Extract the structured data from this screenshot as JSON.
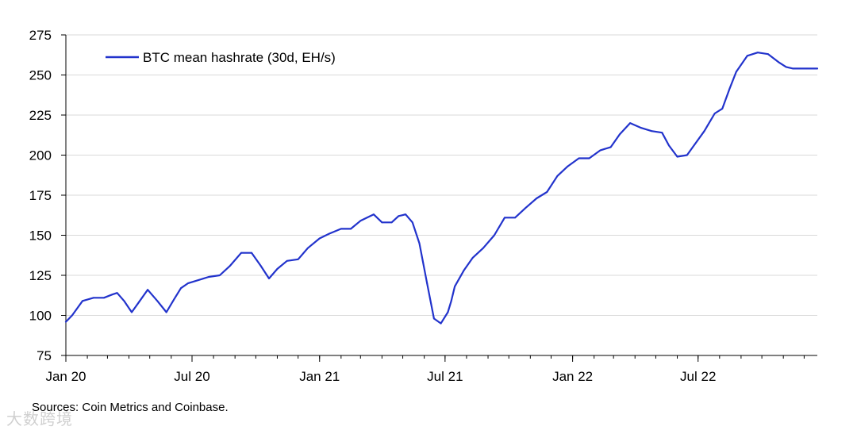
{
  "chart_data": {
    "type": "line",
    "title": "",
    "xlabel": "",
    "ylabel": "",
    "ylim": [
      75,
      275
    ],
    "yticks": [
      75,
      100,
      125,
      150,
      175,
      200,
      225,
      250,
      275
    ],
    "xlim": [
      "2020-01-01",
      "2022-12-20"
    ],
    "xticks": [
      {
        "date": "2020-01-01",
        "label": "Jan 20"
      },
      {
        "date": "2020-07-01",
        "label": "Jul 20"
      },
      {
        "date": "2021-01-01",
        "label": "Jan 21"
      },
      {
        "date": "2021-07-01",
        "label": "Jul 21"
      },
      {
        "date": "2022-01-01",
        "label": "Jan 22"
      },
      {
        "date": "2022-07-01",
        "label": "Jul 22"
      }
    ],
    "grid": "horizontal",
    "legend_position": "top-left",
    "series": [
      {
        "name": "BTC mean hashrate (30d, EH/s)",
        "color": "#2233cc",
        "x": [
          "2020-01-01",
          "2020-01-10",
          "2020-01-25",
          "2020-02-10",
          "2020-02-25",
          "2020-03-08",
          "2020-03-15",
          "2020-03-25",
          "2020-04-05",
          "2020-04-15",
          "2020-04-28",
          "2020-05-12",
          "2020-05-25",
          "2020-06-05",
          "2020-06-15",
          "2020-06-25",
          "2020-07-10",
          "2020-07-25",
          "2020-08-10",
          "2020-08-25",
          "2020-09-10",
          "2020-09-25",
          "2020-10-08",
          "2020-10-20",
          "2020-11-01",
          "2020-11-15",
          "2020-12-01",
          "2020-12-15",
          "2021-01-01",
          "2021-01-15",
          "2021-02-01",
          "2021-02-15",
          "2021-03-01",
          "2021-03-20",
          "2021-04-01",
          "2021-04-15",
          "2021-04-25",
          "2021-05-05",
          "2021-05-15",
          "2021-05-25",
          "2021-06-05",
          "2021-06-15",
          "2021-06-25",
          "2021-07-05",
          "2021-07-10",
          "2021-07-15",
          "2021-07-28",
          "2021-08-10",
          "2021-08-25",
          "2021-09-10",
          "2021-09-25",
          "2021-10-10",
          "2021-10-25",
          "2021-11-10",
          "2021-11-25",
          "2021-12-10",
          "2021-12-25",
          "2022-01-10",
          "2022-01-25",
          "2022-02-10",
          "2022-02-25",
          "2022-03-10",
          "2022-03-25",
          "2022-04-10",
          "2022-04-25",
          "2022-05-10",
          "2022-05-20",
          "2022-06-01",
          "2022-06-15",
          "2022-06-25",
          "2022-07-10",
          "2022-07-25",
          "2022-08-05",
          "2022-08-15",
          "2022-08-25",
          "2022-09-10",
          "2022-09-25",
          "2022-10-10",
          "2022-10-25",
          "2022-11-05",
          "2022-11-15",
          "2022-11-25",
          "2022-12-05",
          "2022-12-15",
          "2022-12-20"
        ],
        "values": [
          96,
          100,
          109,
          111,
          111,
          113,
          114,
          109,
          102,
          108,
          116,
          109,
          102,
          110,
          117,
          120,
          122,
          124,
          125,
          131,
          139,
          139,
          131,
          123,
          129,
          134,
          135,
          142,
          148,
          151,
          154,
          154,
          159,
          163,
          158,
          158,
          162,
          163,
          158,
          145,
          120,
          98,
          95,
          102,
          109,
          118,
          128,
          136,
          142,
          150,
          161,
          161,
          167,
          173,
          177,
          187,
          193,
          198,
          198,
          203,
          205,
          213,
          220,
          217,
          215,
          214,
          206,
          199,
          200,
          206,
          215,
          226,
          229,
          241,
          252,
          262,
          264,
          263,
          258,
          255,
          254,
          254,
          254,
          254,
          254
        ]
      }
    ]
  },
  "legend": {
    "label": "BTC mean hashrate (30d, EH/s)"
  },
  "footer": {
    "source": "Sources: Coin Metrics and Coinbase.",
    "watermark": "大数跨境"
  }
}
